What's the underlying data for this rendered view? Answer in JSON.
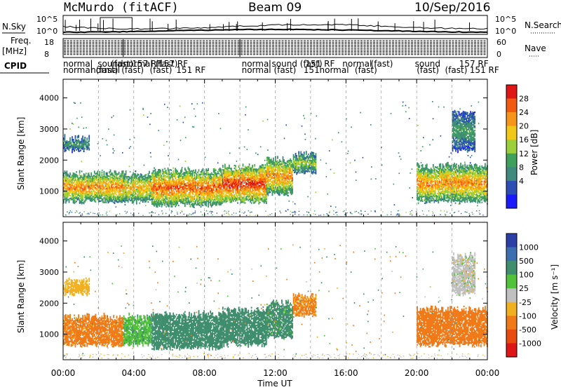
{
  "header": {
    "station": "McMurdo (fitACF)",
    "beam": "Beam 09",
    "date": "10/Sep/2016"
  },
  "top_panels": {
    "nsky_label": "N.Sky",
    "nsearch_label": "N.Search",
    "noise_ticks_left": [
      "10^5",
      "10^0"
    ],
    "noise_ticks_right": [
      "10^5",
      "10^0"
    ],
    "freq_label_1": "Freq.",
    "freq_label_2": "[MHz]",
    "freq_ticks": [
      "18",
      "8"
    ],
    "nave_label": "Nave",
    "nave_ticks": [
      "60",
      "0"
    ],
    "cpid_label": "CPID",
    "cpid_row1": [
      {
        "t": 0.0,
        "text": "normal"
      },
      {
        "t": 1.95,
        "text": "sound"
      },
      {
        "t": 2.7,
        "text": "(fast)"
      },
      {
        "t": 3.4,
        "text": "normal (fast)"
      },
      {
        "t": 3.9,
        "text": "157 RF"
      },
      {
        "t": 5.4,
        "text": "157 RF"
      },
      {
        "t": 10.1,
        "text": "normal"
      },
      {
        "t": 11.8,
        "text": "sound (fast)"
      },
      {
        "t": 13.7,
        "text": "151 RF"
      },
      {
        "t": 15.8,
        "text": "normal"
      },
      {
        "t": 17.4,
        "text": "(fast)"
      },
      {
        "t": 19.9,
        "text": "sound"
      },
      {
        "t": 22.4,
        "text": "157 RF"
      }
    ],
    "cpid_row2": [
      {
        "t": 0.0,
        "text": "normal"
      },
      {
        "t": 1.55,
        "text": "normal"
      },
      {
        "t": 1.85,
        "text": "(fast)"
      },
      {
        "t": 3.3,
        "text": "(fast)"
      },
      {
        "t": 4.9,
        "text": "(fast)"
      },
      {
        "t": 6.4,
        "text": "151 RF"
      },
      {
        "t": 10.1,
        "text": "normal (fast)"
      },
      {
        "t": 13.6,
        "text": "151"
      },
      {
        "t": 14.5,
        "text": "normal"
      },
      {
        "t": 16.5,
        "text": "(fast)"
      },
      {
        "t": 20.0,
        "text": "(fast)"
      },
      {
        "t": 21.6,
        "text": "(fast)"
      },
      {
        "t": 23.0,
        "text": "151 RF"
      }
    ]
  },
  "power_panel": {
    "ylabel": "Slant Range [km]",
    "colorbar_label": "Power [dB]",
    "colorbar_ticks": [
      "28",
      "24",
      "20",
      "16",
      "12",
      "8",
      "4"
    ],
    "colorbar_colors": [
      "#e01515",
      "#f25a0f",
      "#f7951a",
      "#f2c818",
      "#9bd03a",
      "#3fa05c",
      "#3f8a7f",
      "#2b4fb5",
      "#1a1aff"
    ]
  },
  "velocity_panel": {
    "ylabel": "Slant Range [km]",
    "colorbar_label": "Velocity [m s⁻¹]",
    "colorbar_ticks": [
      "1000",
      "500",
      "100",
      "25",
      "-25",
      "-100",
      "-500",
      "-1000"
    ],
    "colorbar_colors": [
      "#2a3fa8",
      "#3b6fb0",
      "#3f8e6e",
      "#52c23a",
      "#c0c0c0",
      "#f0b020",
      "#f07a18",
      "#e84a10",
      "#e01515"
    ]
  },
  "axes": {
    "xlabel": "Time UT",
    "xticks": [
      "00:00",
      "04:00",
      "08:00",
      "12:00",
      "16:00",
      "20:00",
      "00:00"
    ],
    "yticks": [
      "1000",
      "2000",
      "3000",
      "4000"
    ]
  },
  "chart_data": [
    {
      "type": "heatmap",
      "title": "Power [dB]",
      "xlabel": "Time UT",
      "ylabel": "Slant Range [km]",
      "xlim": [
        0,
        24
      ],
      "ylim": [
        180,
        4600
      ],
      "zlim": [
        0,
        30
      ],
      "blobs": [
        {
          "t0": 0.0,
          "t1": 3.4,
          "lo": 650,
          "hi": 1550,
          "z": 20
        },
        {
          "t0": 3.4,
          "t1": 5.0,
          "lo": 650,
          "hi": 1550,
          "z": 18
        },
        {
          "t0": 5.0,
          "t1": 9.0,
          "lo": 550,
          "hi": 1650,
          "z": 22
        },
        {
          "t0": 9.0,
          "t1": 11.5,
          "lo": 650,
          "hi": 1750,
          "z": 24
        },
        {
          "t0": 11.5,
          "t1": 13.0,
          "lo": 900,
          "hi": 2000,
          "z": 20
        },
        {
          "t0": 13.0,
          "t1": 14.3,
          "lo": 1600,
          "hi": 2200,
          "z": 14
        },
        {
          "t0": 20.0,
          "t1": 24.0,
          "lo": 650,
          "hi": 1800,
          "z": 20
        },
        {
          "t0": 0.0,
          "t1": 1.5,
          "lo": 2300,
          "hi": 2700,
          "z": 10
        },
        {
          "t0": 22.0,
          "t1": 23.3,
          "lo": 2300,
          "hi": 3500,
          "z": 10
        }
      ]
    },
    {
      "type": "heatmap",
      "title": "Velocity [m s⁻¹]",
      "xlabel": "Time UT",
      "ylabel": "Slant Range [km]",
      "xlim": [
        0,
        24
      ],
      "ylim": [
        180,
        4600
      ],
      "zlim": [
        -1000,
        1000
      ],
      "blobs": [
        {
          "t0": 0.0,
          "t1": 3.4,
          "lo": 650,
          "hi": 1550,
          "v": -150
        },
        {
          "t0": 3.4,
          "t1": 5.0,
          "lo": 650,
          "hi": 1550,
          "v": 80
        },
        {
          "t0": 5.0,
          "t1": 9.0,
          "lo": 550,
          "hi": 1650,
          "v": 200
        },
        {
          "t0": 9.0,
          "t1": 11.5,
          "lo": 650,
          "hi": 1750,
          "v": 200
        },
        {
          "t0": 11.5,
          "t1": 13.0,
          "lo": 900,
          "hi": 2000,
          "v": 150
        },
        {
          "t0": 13.0,
          "t1": 14.3,
          "lo": 1600,
          "hi": 2200,
          "v": -120
        },
        {
          "t0": 20.0,
          "t1": 24.0,
          "lo": 650,
          "hi": 1800,
          "v": -300
        },
        {
          "t0": 0.0,
          "t1": 1.5,
          "lo": 2300,
          "hi": 2700,
          "v": -60
        },
        {
          "t0": 22.0,
          "t1": 23.3,
          "lo": 2300,
          "hi": 3500,
          "v": 0
        }
      ]
    }
  ]
}
